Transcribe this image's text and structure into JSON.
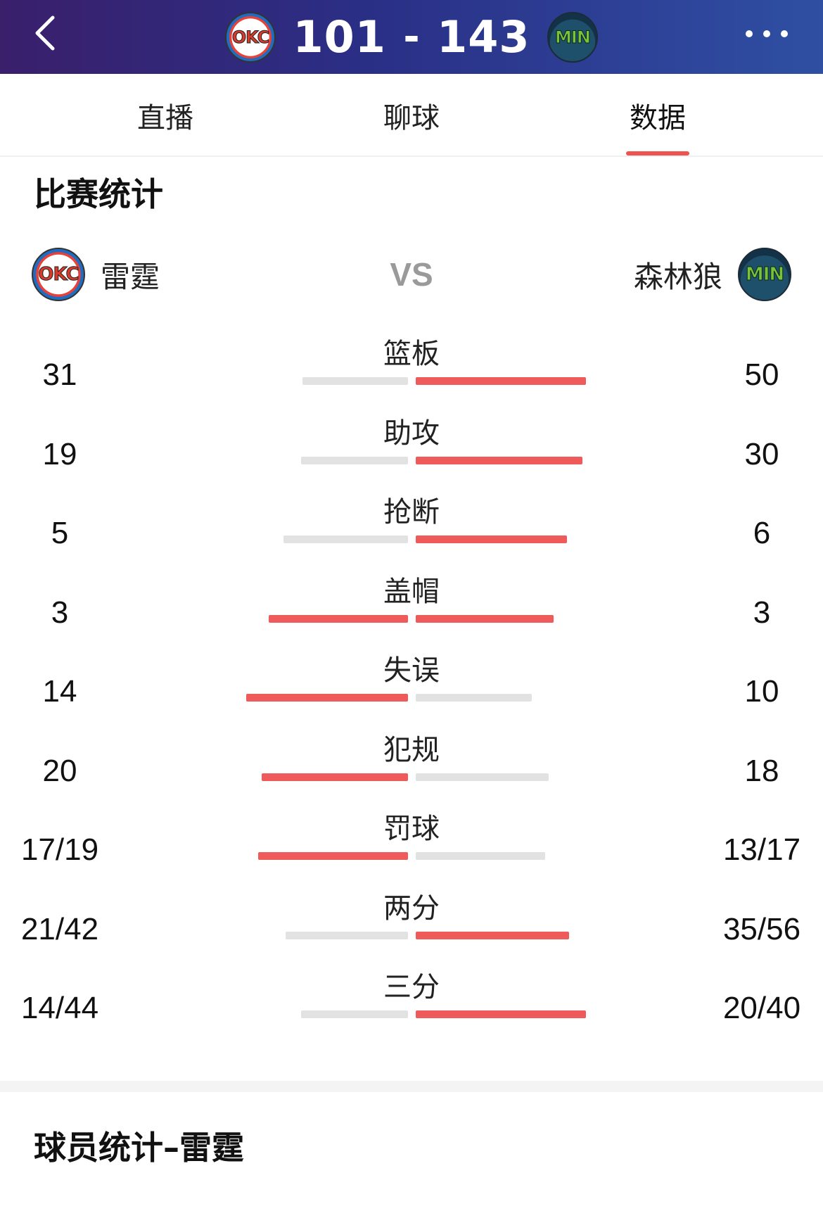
{
  "header": {
    "away_team_logo_text": "OKC",
    "home_team_logo_text": "MIN",
    "away_score": "101",
    "separator": "-",
    "home_score": "143",
    "back_icon": "chevron-left-icon",
    "more_icon": "more-horizontal-icon"
  },
  "tabs": [
    {
      "label": "直播",
      "active": false
    },
    {
      "label": "聊球",
      "active": false
    },
    {
      "label": "数据",
      "active": true
    }
  ],
  "match_stats": {
    "title": "比赛统计",
    "left_team": "雷霆",
    "vs": "VS",
    "right_team": "森林狼",
    "rows": [
      {
        "label": "篮板",
        "left": "31",
        "right": "50",
        "left_fraction": 0.62,
        "right_fraction": 1.0,
        "left_color": "gray",
        "right_color": "red"
      },
      {
        "label": "助攻",
        "left": "19",
        "right": "30",
        "left_fraction": 0.63,
        "right_fraction": 0.98,
        "left_color": "gray",
        "right_color": "red"
      },
      {
        "label": "抢断",
        "left": "5",
        "right": "6",
        "left_fraction": 0.73,
        "right_fraction": 0.89,
        "left_color": "gray",
        "right_color": "red"
      },
      {
        "label": "盖帽",
        "left": "3",
        "right": "3",
        "left_fraction": 0.82,
        "right_fraction": 0.81,
        "left_color": "red",
        "right_color": "red"
      },
      {
        "label": "失误",
        "left": "14",
        "right": "10",
        "left_fraction": 0.95,
        "right_fraction": 0.68,
        "left_color": "red",
        "right_color": "gray"
      },
      {
        "label": "犯规",
        "left": "20",
        "right": "18",
        "left_fraction": 0.86,
        "right_fraction": 0.78,
        "left_color": "red",
        "right_color": "gray"
      },
      {
        "label": "罚球",
        "left": "17/19",
        "right": "13/17",
        "left_fraction": 0.88,
        "right_fraction": 0.76,
        "left_color": "red",
        "right_color": "gray"
      },
      {
        "label": "两分",
        "left": "21/42",
        "right": "35/56",
        "left_fraction": 0.72,
        "right_fraction": 0.9,
        "left_color": "gray",
        "right_color": "red"
      },
      {
        "label": "三分",
        "left": "14/44",
        "right": "20/40",
        "left_fraction": 0.63,
        "right_fraction": 1.0,
        "left_color": "gray",
        "right_color": "red"
      }
    ]
  },
  "player_stats": {
    "title": "球员统计–雷霆"
  },
  "colors": {
    "accent": "#ef5a5a",
    "bar_gray": "#e2e2e2",
    "header_start": "#3a1f6b",
    "header_end": "#2f4fa3"
  }
}
